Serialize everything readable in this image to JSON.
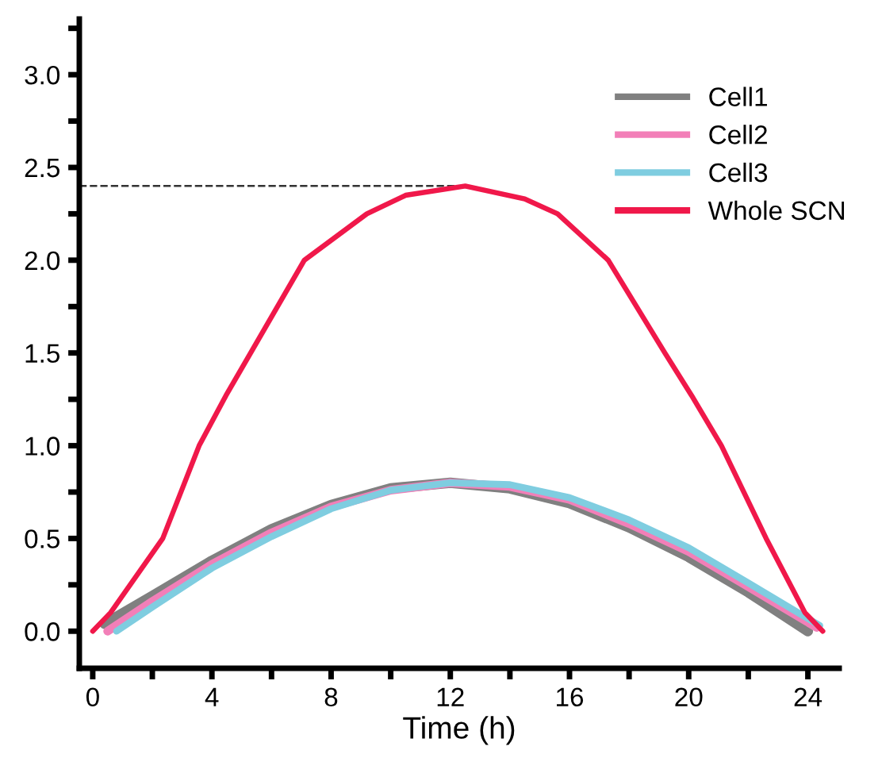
{
  "chart_data": {
    "type": "line",
    "xlabel": "Time (h)",
    "xlim": [
      -0.45,
      25.05
    ],
    "ylim": [
      -0.2,
      3.3
    ],
    "xticks": [
      0,
      {
        "value": 2,
        "label": null
      },
      4,
      {
        "value": 6,
        "label": null
      },
      8,
      {
        "value": 10,
        "label": null
      },
      12,
      {
        "value": 14,
        "label": null
      },
      16,
      {
        "value": 18,
        "label": null
      },
      20,
      {
        "value": 22,
        "label": null
      },
      24
    ],
    "yticks": [
      {
        "value": 0,
        "label": "0.0"
      },
      {
        "value": 0.25,
        "label": null
      },
      0.5,
      {
        "value": 0.75,
        "label": null
      },
      {
        "value": 1,
        "label": "1.0"
      },
      {
        "value": 1.25,
        "label": null
      },
      1.5,
      {
        "value": 1.75,
        "label": null
      },
      {
        "value": 2,
        "label": "2.0"
      },
      {
        "value": 2.25,
        "label": null
      },
      2.5,
      {
        "value": 2.75,
        "label": null
      },
      {
        "value": 3,
        "label": "3.0"
      },
      {
        "value": 3.25,
        "label": null
      }
    ],
    "grid": false,
    "legend": "top right",
    "marker": "none",
    "line_style": "solid",
    "ref_lines": [
      {
        "axis": "y",
        "value": 2.4,
        "color": "#333333",
        "line_style": "dashed"
      }
    ],
    "series": [
      {
        "name": "Cell1",
        "color": "#808080",
        "x": [
          0.4,
          2,
          4,
          6,
          8,
          10,
          12,
          14,
          16,
          18,
          20,
          22,
          24
        ],
        "values": [
          0.04,
          0.19,
          0.38,
          0.55,
          0.68,
          0.77,
          0.8,
          0.77,
          0.69,
          0.56,
          0.4,
          0.21,
          0.0
        ]
      },
      {
        "name": "Cell2",
        "color": "#f27fb8",
        "x": [
          0.5,
          2,
          4,
          6,
          8,
          10,
          12,
          14,
          16,
          18,
          20,
          22,
          24.3
        ],
        "values": [
          0.0,
          0.16,
          0.36,
          0.53,
          0.67,
          0.76,
          0.8,
          0.78,
          0.71,
          0.58,
          0.43,
          0.24,
          0.02
        ]
      },
      {
        "name": "Cell3",
        "color": "#7fcde0",
        "x": [
          0.8,
          2,
          4,
          6,
          8,
          10,
          12,
          14,
          16,
          18,
          20,
          22,
          24.4
        ],
        "values": [
          0.0,
          0.13,
          0.34,
          0.51,
          0.66,
          0.76,
          0.8,
          0.79,
          0.72,
          0.6,
          0.45,
          0.26,
          0.03
        ]
      },
      {
        "name": "Whole SCN",
        "color": "#f0184a",
        "x": [
          0,
          0.6,
          2.35,
          3.57,
          4.47,
          5.3,
          7.1,
          9.2,
          10.5,
          12.5,
          14.5,
          15.6,
          17.3,
          19.2,
          20.1,
          21.1,
          22.6,
          23.9,
          24.5
        ],
        "values": [
          0.0,
          0.1,
          0.5,
          1.0,
          1.27,
          1.5,
          2.0,
          2.25,
          2.35,
          2.4,
          2.33,
          2.25,
          2.0,
          1.5,
          1.27,
          1.0,
          0.5,
          0.1,
          0.0
        ]
      }
    ]
  }
}
